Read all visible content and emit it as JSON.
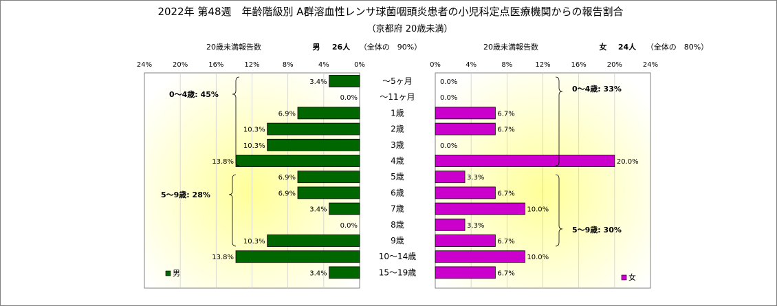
{
  "chart_data": {
    "type": "bar",
    "title": "2022年 第48週　年齢階級別 A群溶血性レンサ球菌咽頭炎患者の小児科定点医療機関からの報告割合",
    "subtitle": "（京都府 20歳未満）",
    "categories": [
      "～5ヶ月",
      "～11ヶ月",
      "1歳",
      "2歳",
      "3歳",
      "4歳",
      "5歳",
      "6歳",
      "7歳",
      "8歳",
      "9歳",
      "10～14歳",
      "15～19歳"
    ],
    "axis_ticks": [
      "24%",
      "20%",
      "16%",
      "12%",
      "8%",
      "4%",
      "0%"
    ],
    "axis_ticks_right": [
      "0%",
      "4%",
      "8%",
      "12%",
      "16%",
      "20%",
      "24%"
    ],
    "xlim": [
      0,
      24
    ],
    "male": {
      "header_label": "20歳未満報告数",
      "summary_name": "男",
      "summary_count": "26人",
      "summary_share": "（全体の　90%）",
      "legend": "男",
      "color": "#006600",
      "values": [
        3.4,
        0.0,
        6.9,
        10.3,
        10.3,
        13.8,
        6.9,
        6.9,
        3.4,
        0.0,
        10.3,
        13.8,
        3.4
      ],
      "labels": [
        "3.4%",
        "0.0%",
        "6.9%",
        "10.3%",
        "10.3%",
        "13.8%",
        "6.9%",
        "6.9%",
        "3.4%",
        "0.0%",
        "10.3%",
        "13.8%",
        "3.4%"
      ],
      "group_0_4": "0～4歳: 45%",
      "group_5_9": "5～9歳: 28%"
    },
    "female": {
      "header_label": "20歳未満報告数",
      "summary_name": "女",
      "summary_count": "24人",
      "summary_share": "（全体の　80%）",
      "legend": "女",
      "color": "#cc00cc",
      "values": [
        0.0,
        0.0,
        6.7,
        6.7,
        0.0,
        20.0,
        3.3,
        6.7,
        10.0,
        3.3,
        6.7,
        10.0,
        6.7
      ],
      "labels": [
        "0.0%",
        "0.0%",
        "6.7%",
        "6.7%",
        "0.0%",
        "20.0%",
        "3.3%",
        "6.7%",
        "10.0%",
        "3.3%",
        "6.7%",
        "10.0%",
        "6.7%"
      ],
      "group_0_4": "0～4歳: 33%",
      "group_5_9": "5～9歳: 30%"
    }
  }
}
